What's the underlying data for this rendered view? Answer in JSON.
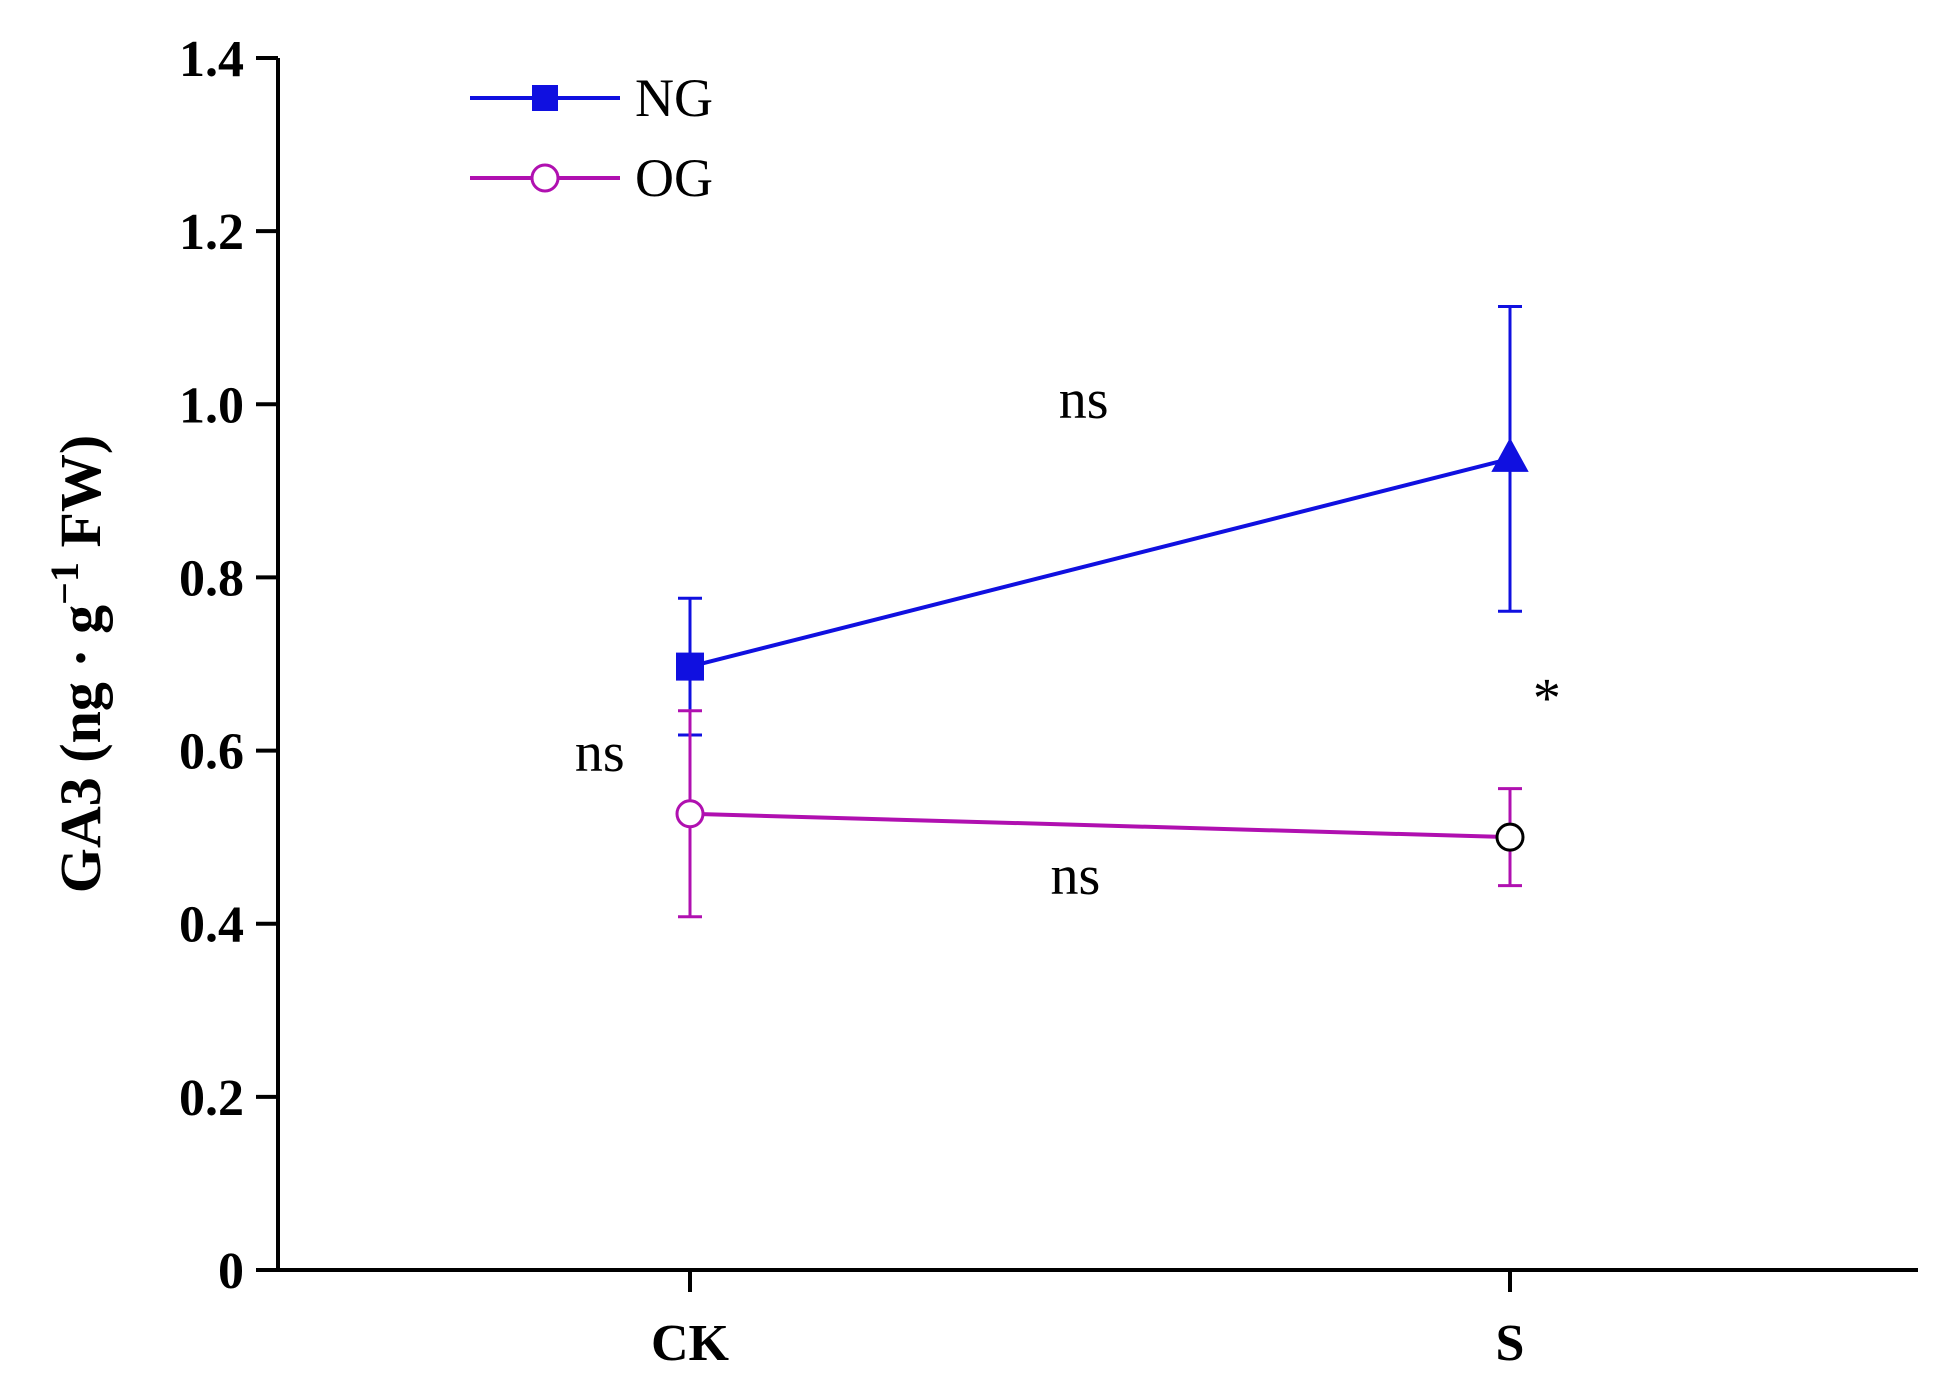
{
  "chart_data": {
    "type": "line",
    "categories": [
      "CK",
      "S"
    ],
    "ylabel": {
      "main": "GA3 (ng · g",
      "superscript": "−1",
      "suffix": " FW)"
    },
    "ylim": [
      0,
      1.4
    ],
    "yticks": [
      {
        "value": 0,
        "label": "0"
      },
      {
        "value": 0.2,
        "label": "0.2"
      },
      {
        "value": 0.4,
        "label": "0.4"
      },
      {
        "value": 0.6,
        "label": "0.6"
      },
      {
        "value": 0.8,
        "label": "0.8"
      },
      {
        "value": 1.0,
        "label": "1.0"
      },
      {
        "value": 1.2,
        "label": "1.2"
      },
      {
        "value": 1.4,
        "label": "1.4"
      }
    ],
    "legend_position": "top-left",
    "series": [
      {
        "name": "NG",
        "color": "#1010e0",
        "legend_marker": "square",
        "markers": [
          "square",
          "triangle"
        ],
        "marker_fill": "#1010e0",
        "values": [
          0.697,
          0.937
        ],
        "errors": [
          0.079,
          0.176
        ]
      },
      {
        "name": "OG",
        "color": "#b010b0",
        "legend_marker": "open-circle",
        "markers": [
          "open-circle",
          "open-circle"
        ],
        "marker_fill": "#ffffff",
        "values": [
          0.527,
          0.5
        ],
        "errors": [
          0.119,
          0.056
        ]
      }
    ],
    "annotations": [
      {
        "text": "ns",
        "x_cat": 0.48,
        "y": 1.005
      },
      {
        "text": "ns",
        "x_cat": -0.11,
        "y": 0.597
      },
      {
        "text": "*",
        "x_cat": 1.045,
        "y": 0.66
      },
      {
        "text": "ns",
        "x_cat": 0.47,
        "y": 0.455
      }
    ]
  }
}
